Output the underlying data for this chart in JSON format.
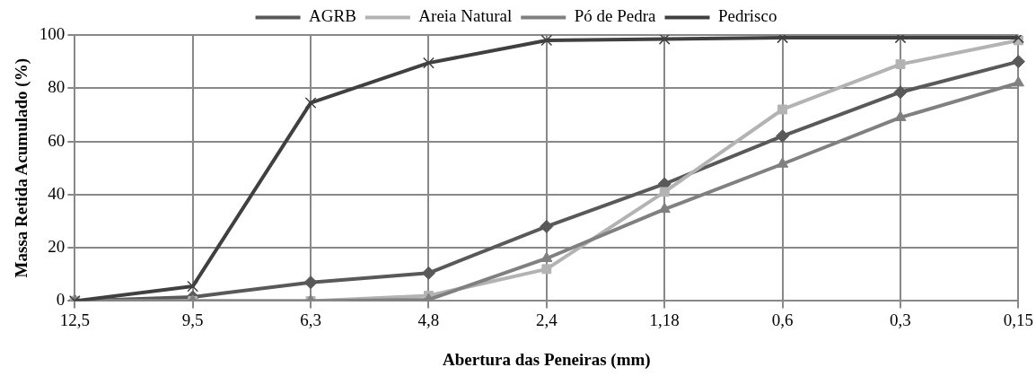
{
  "chart_data": {
    "type": "line",
    "xlabel": "Abertura das Peneiras (mm)",
    "ylabel": "Massa Retida Acumulado (%)",
    "categories": [
      "12,5",
      "9,5",
      "6,3",
      "4,8",
      "2,4",
      "1,18",
      "0,6",
      "0,3",
      "0,15"
    ],
    "series": [
      {
        "name": "AGRB",
        "color": "#595959",
        "marker": "diamond",
        "values": [
          0,
          1.5,
          7,
          10.5,
          28,
          44,
          62,
          78.5,
          90
        ]
      },
      {
        "name": "Areia Natural",
        "color": "#b3b3b3",
        "marker": "square",
        "values": [
          0,
          0,
          0,
          2,
          12,
          41,
          72,
          89,
          98
        ]
      },
      {
        "name": "Pó de Pedra",
        "color": "#808080",
        "marker": "triangle",
        "values": [
          0,
          0,
          0,
          0.5,
          16,
          34.5,
          51.5,
          69,
          82
        ]
      },
      {
        "name": "Pedrisco",
        "color": "#404040",
        "marker": "cross",
        "values": [
          0,
          5.5,
          74.5,
          89.5,
          98,
          98.5,
          99,
          99,
          99
        ]
      }
    ],
    "ylim": [
      0,
      100
    ],
    "yticks": [
      0,
      20,
      40,
      60,
      80,
      100
    ],
    "grid": true,
    "legend": "top",
    "line_style": "solid"
  }
}
